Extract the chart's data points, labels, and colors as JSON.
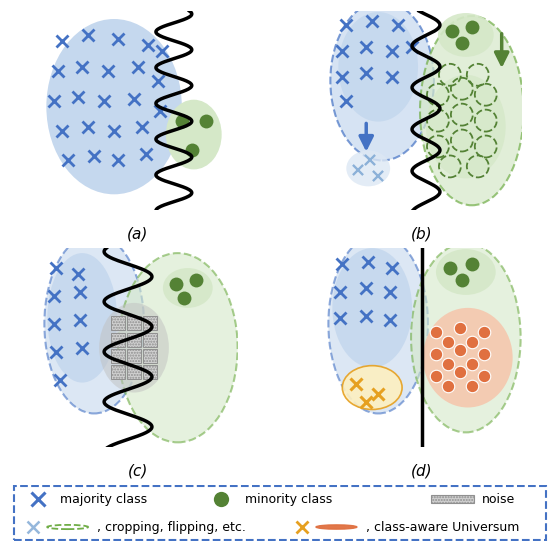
{
  "fig_width": 5.6,
  "fig_height": 5.52,
  "dpi": 100,
  "blue_fill": "#c5d8ee",
  "blue_marker": "#4472c4",
  "blue_dashed": "#4472c4",
  "green_fill": "#d5e8c8",
  "green_dark": "#548235",
  "green_dashed": "#70ad47",
  "orange_fill": "#f4c9b0",
  "orange_marker": "#e07040",
  "yellow_marker": "#e6a020",
  "yellow_fill": "#fdefc0",
  "noise_fill": "#d0d0d0",
  "noise_edge": "#909090",
  "white": "#ffffff",
  "panel_labels": [
    "(a)",
    "(b)",
    "(c)",
    "(d)"
  ],
  "panel_label_fontsize": 11
}
